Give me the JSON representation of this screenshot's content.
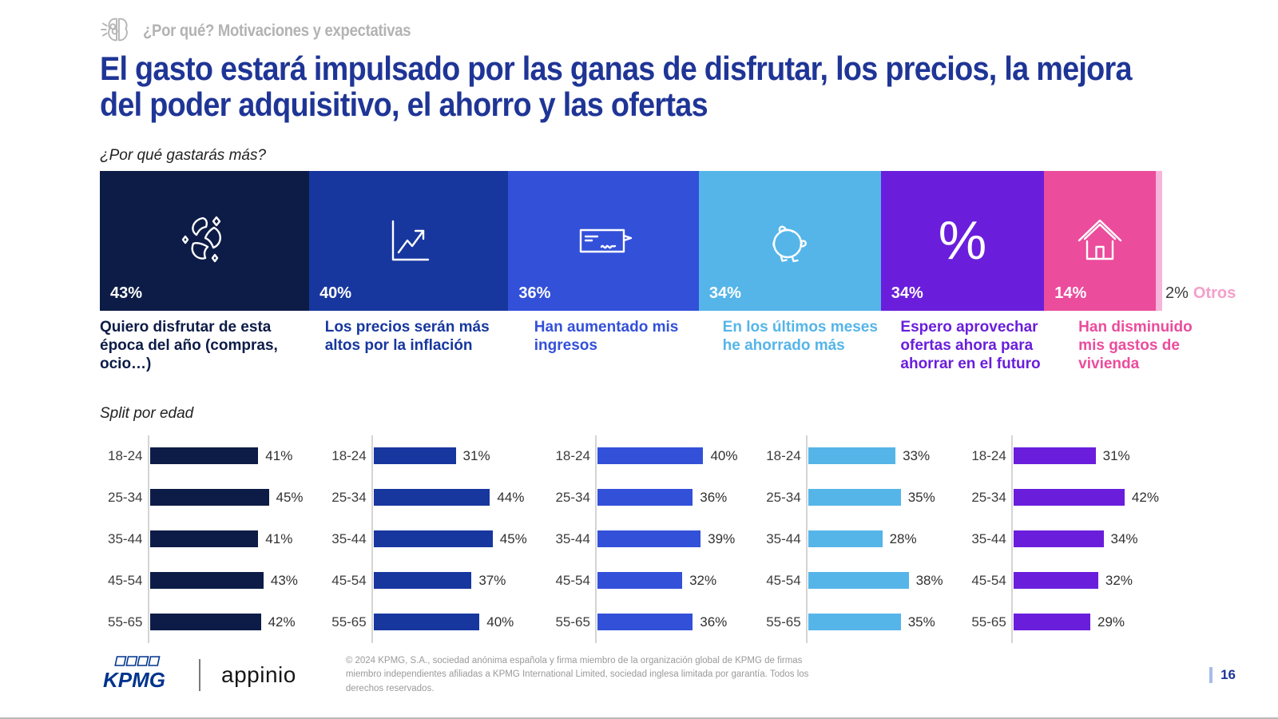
{
  "slide": {
    "eyebrow": "¿Por qué? Motivaciones y expectativas",
    "title": "El gasto estará impulsado por las ganas de disfrutar, los precios, la mejora del poder adquisitivo, el ahorro y las ofertas",
    "question_label": "¿Por qué gastarás más?",
    "split_label": "Split por edad",
    "page_number": "16"
  },
  "footer": {
    "kpmg_logo": "KPMG",
    "appinio_logo": "appinio",
    "copyright": "© 2024 KPMG, S.A., sociedad anónima española y firma miembro de la organización global de KPMG de firmas miembro independientes afiliadas a KPMG International Limited, sociedad inglesa limitada por garantía. Todos los derechos reservados."
  },
  "colors": {
    "title_blue": "#1f3596",
    "eyebrow_gray": "#b3b3b3",
    "otros_value_gray": "#3a3a3a",
    "otros_pink": "#f49fca",
    "kpmg_blue": "#00338D"
  },
  "chart_data": [
    {
      "type": "bar",
      "subtype": "horizontal-stacked-percent",
      "title": "¿Por qué gastarás más?",
      "segments": [
        {
          "label": "Quiero disfrutar de esta época del año (compras, ocio…)",
          "value": 43,
          "color": "#0d1c47",
          "icon": "confetti"
        },
        {
          "label": "Los precios serán más altos por la inflación",
          "value": 40,
          "color": "#17379f",
          "icon": "chart-up"
        },
        {
          "label": "Han aumentado mis ingresos",
          "value": 36,
          "color": "#3350d9",
          "icon": "cheque"
        },
        {
          "label": "En los últimos meses he ahorrado más",
          "value": 34,
          "color": "#55b5e9",
          "icon": "piggy-bank"
        },
        {
          "label": "Espero aprovechar ofertas ahora para ahorrar en el futuro",
          "value": 34,
          "color": "#6a1edc",
          "icon": "percent-symbol"
        },
        {
          "label": "Han disminuido mis gastos de vivienda",
          "value": 14,
          "color": "#eb4c9c",
          "icon": "house"
        },
        {
          "label": "Otros",
          "value": 2,
          "color": "#f4b6d9",
          "icon": null
        }
      ]
    },
    {
      "type": "bar",
      "subtype": "horizontal-grouped-by-age",
      "title": "Split por edad",
      "categories": [
        "18-24",
        "25-34",
        "35-44",
        "45-54",
        "55-65"
      ],
      "series": [
        {
          "name": "Quiero disfrutar de esta época del año (compras, ocio…)",
          "color": "#0d1c47",
          "values": [
            41,
            45,
            41,
            43,
            42
          ]
        },
        {
          "name": "Los precios serán más altos por la inflación",
          "color": "#17379f",
          "values": [
            31,
            44,
            45,
            37,
            40
          ]
        },
        {
          "name": "Han aumentado mis ingresos",
          "color": "#3350d9",
          "values": [
            40,
            36,
            39,
            32,
            36
          ]
        },
        {
          "name": "En los últimos meses he ahorrado más",
          "color": "#55b5e9",
          "values": [
            33,
            35,
            28,
            38,
            35
          ]
        },
        {
          "name": "Espero aprovechar ofertas ahora para ahorrar en el futuro",
          "color": "#6a1edc",
          "values": [
            31,
            42,
            34,
            32,
            29
          ]
        }
      ],
      "value_suffix": "%",
      "xlim": [
        0,
        50
      ],
      "grid": false,
      "legend": false
    }
  ]
}
